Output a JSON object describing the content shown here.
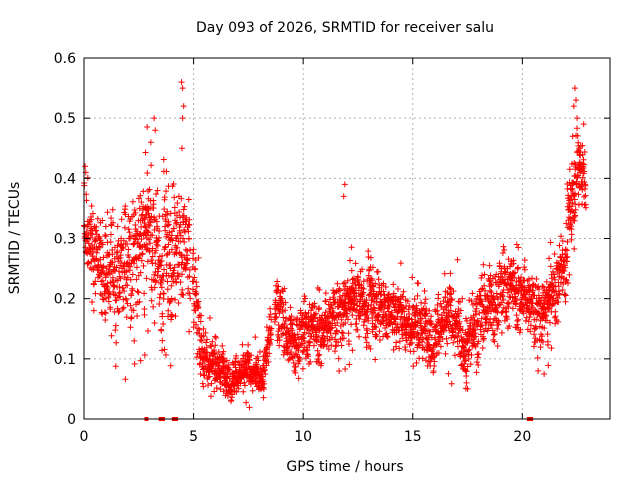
{
  "chart_data": {
    "type": "scatter",
    "title": "Day 093 of 2026, SRMTID for receiver salu",
    "xlabel": "GPS time / hours",
    "ylabel": "SRMTID / TECUs",
    "xlim": [
      0,
      24
    ],
    "ylim": [
      0,
      0.6
    ],
    "x_ticks": [
      0,
      5,
      10,
      15,
      20
    ],
    "x_tick_labels": [
      "0",
      "5",
      "10",
      "15",
      "20"
    ],
    "y_ticks": [
      0,
      0.1,
      0.2,
      0.3,
      0.4,
      0.5,
      0.6
    ],
    "y_tick_labels": [
      "0",
      "0.1",
      "0.2",
      "0.3",
      "0.4",
      "0.5",
      "0.6"
    ],
    "grid": true,
    "marker": "+",
    "color": "#ff0000",
    "trend": {
      "x": [
        0,
        0.3,
        1.0,
        2.0,
        3.0,
        3.7,
        4.2,
        4.6,
        5.0,
        5.3,
        6.0,
        7.0,
        7.5,
        8.2,
        8.8,
        9.3,
        10.0,
        11.0,
        12.0,
        12.5,
        13.0,
        14.0,
        15.0,
        16.0,
        17.0,
        17.5,
        18.0,
        19.0,
        20.0,
        20.5,
        21.0,
        21.5,
        22.0,
        22.5,
        22.9
      ],
      "y": [
        0.34,
        0.29,
        0.23,
        0.25,
        0.3,
        0.25,
        0.28,
        0.3,
        0.24,
        0.12,
        0.09,
        0.07,
        0.075,
        0.08,
        0.2,
        0.13,
        0.14,
        0.16,
        0.18,
        0.2,
        0.19,
        0.18,
        0.16,
        0.15,
        0.16,
        0.12,
        0.17,
        0.21,
        0.22,
        0.18,
        0.17,
        0.21,
        0.28,
        0.42,
        0.4
      ]
    },
    "spread": {
      "x": [
        0,
        3,
        4.8,
        5.0,
        6.0,
        8.0,
        9.0,
        12.0,
        16.0,
        19.0,
        21.0,
        22.0,
        23.0
      ],
      "y": [
        0.06,
        0.09,
        0.09,
        0.07,
        0.03,
        0.025,
        0.04,
        0.045,
        0.045,
        0.05,
        0.045,
        0.05,
        0.05
      ]
    },
    "outliers": [
      {
        "x": 0.05,
        "y": 0.42
      },
      {
        "x": 0.08,
        "y": 0.41
      },
      {
        "x": 3.2,
        "y": 0.5
      },
      {
        "x": 3.25,
        "y": 0.48
      },
      {
        "x": 3.05,
        "y": 0.46
      },
      {
        "x": 4.45,
        "y": 0.56
      },
      {
        "x": 4.5,
        "y": 0.55
      },
      {
        "x": 4.55,
        "y": 0.52
      },
      {
        "x": 4.5,
        "y": 0.5
      },
      {
        "x": 4.47,
        "y": 0.45
      },
      {
        "x": 11.9,
        "y": 0.39
      },
      {
        "x": 11.85,
        "y": 0.37
      },
      {
        "x": 17.5,
        "y": 0.05
      },
      {
        "x": 17.45,
        "y": 0.06
      },
      {
        "x": 22.4,
        "y": 0.55
      },
      {
        "x": 22.45,
        "y": 0.53
      },
      {
        "x": 22.35,
        "y": 0.52
      },
      {
        "x": 22.5,
        "y": 0.5
      },
      {
        "x": 22.3,
        "y": 0.47
      },
      {
        "x": 22.6,
        "y": 0.45
      },
      {
        "x": 22.7,
        "y": 0.42
      },
      {
        "x": 22.8,
        "y": 0.49
      }
    ],
    "gaps": [
      [
        4.85,
        4.95
      ],
      [
        8.55,
        8.7
      ]
    ],
    "sample_step_hours": 0.0083,
    "zero_markers_x": [
      2.85,
      3.5,
      3.6,
      4.1,
      4.2,
      20.3,
      20.4
    ]
  }
}
